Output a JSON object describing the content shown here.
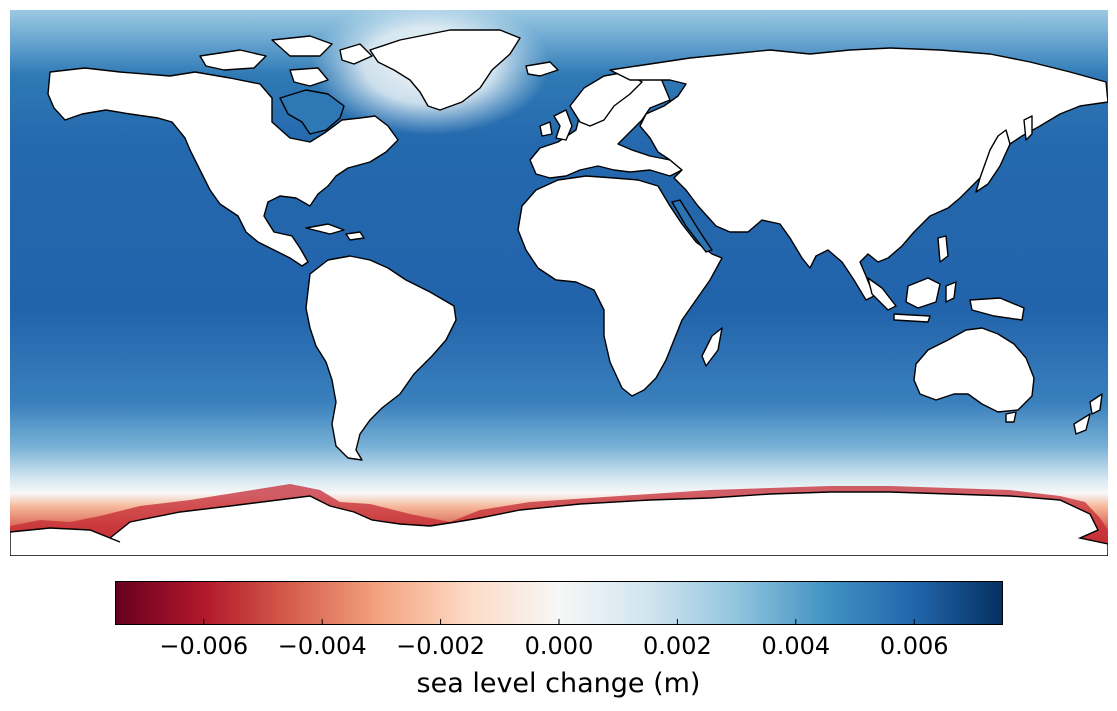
{
  "map": {
    "projection": "plate carree",
    "field": "sea level change",
    "units": "m",
    "ocean_colormap": "RdBu",
    "land_color": "#ffffff",
    "coastline_color": "#000000",
    "pattern": "mostly positive (blue) across the world ocean, maximum in the tropics; near zero/white around Greenland and the Southern Ocean; negative (red) along the Antarctic coast"
  },
  "colorbar": {
    "label": "sea level change (m)",
    "vmin": -0.0075,
    "vmax": 0.0075,
    "ticks": [
      {
        "value": -0.006,
        "label": "−0.006"
      },
      {
        "value": -0.004,
        "label": "−0.004"
      },
      {
        "value": -0.002,
        "label": "−0.002"
      },
      {
        "value": 0.0,
        "label": "0.000"
      },
      {
        "value": 0.002,
        "label": "0.002"
      },
      {
        "value": 0.004,
        "label": "0.004"
      },
      {
        "value": 0.006,
        "label": "0.006"
      }
    ],
    "colors": [
      "#67001f",
      "#b2182b",
      "#d6604d",
      "#f4a582",
      "#fddbc7",
      "#f7f7f7",
      "#d1e5f0",
      "#92c5de",
      "#4393c3",
      "#2166ac",
      "#053061"
    ]
  }
}
